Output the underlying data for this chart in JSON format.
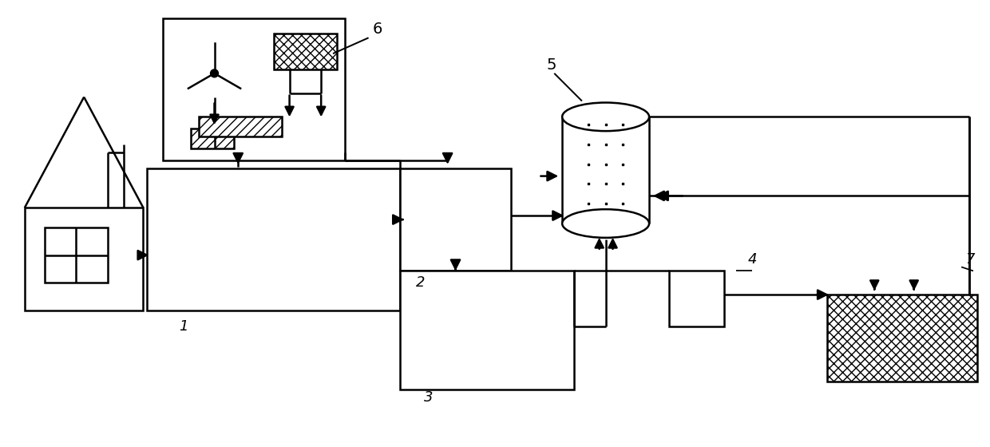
{
  "lw": 1.8,
  "lc": "black",
  "bg": "white",
  "fig_w": 12.4,
  "fig_h": 5.6,
  "xlim": [
    0,
    124
  ],
  "ylim": [
    0,
    56
  ]
}
